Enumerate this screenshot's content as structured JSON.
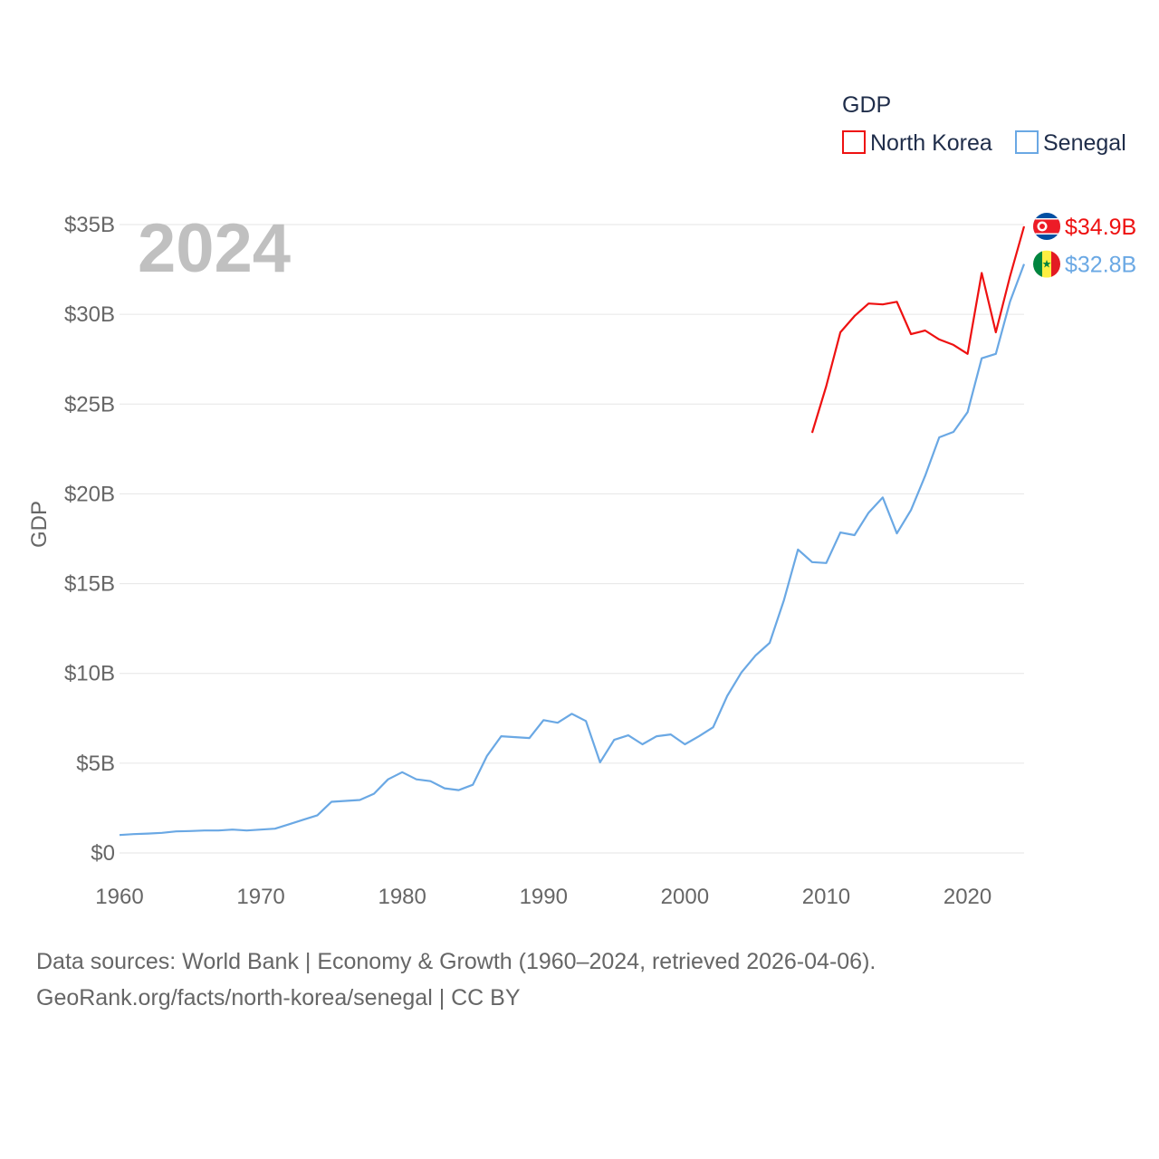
{
  "chart_data": {
    "type": "line",
    "title": "GDP",
    "current_year_label": "2024",
    "ylabel": "GDP",
    "xlabel": "",
    "xlim": [
      1960,
      2024
    ],
    "ylim": [
      0,
      35
    ],
    "y_ticks": [
      {
        "value": 0,
        "label": "$0"
      },
      {
        "value": 5,
        "label": "$5B"
      },
      {
        "value": 10,
        "label": "$10B"
      },
      {
        "value": 15,
        "label": "$15B"
      },
      {
        "value": 20,
        "label": "$20B"
      },
      {
        "value": 25,
        "label": "$25B"
      },
      {
        "value": 30,
        "label": "$30B"
      },
      {
        "value": 35,
        "label": "$35B"
      }
    ],
    "x_ticks": [
      {
        "value": 1960,
        "label": "1960"
      },
      {
        "value": 1970,
        "label": "1970"
      },
      {
        "value": 1980,
        "label": "1980"
      },
      {
        "value": 1990,
        "label": "1990"
      },
      {
        "value": 2000,
        "label": "2000"
      },
      {
        "value": 2010,
        "label": "2010"
      },
      {
        "value": 2020,
        "label": "2020"
      }
    ],
    "legend": {
      "title": "GDP",
      "position": "top-right"
    },
    "series": [
      {
        "name": "North Korea",
        "color": "#ee1111",
        "end_label": "$34.9B",
        "flag": "north-korea-flag-icon",
        "x": [
          2009,
          2010,
          2011,
          2012,
          2013,
          2014,
          2015,
          2016,
          2017,
          2018,
          2019,
          2020,
          2021,
          2022,
          2023,
          2024
        ],
        "values": [
          23.4,
          26.0,
          29.0,
          29.9,
          30.6,
          30.55,
          30.7,
          28.9,
          29.1,
          28.6,
          28.3,
          27.8,
          32.3,
          29.0,
          32.1,
          34.9
        ]
      },
      {
        "name": "Senegal",
        "color": "#6aa8e4",
        "end_label": "$32.8B",
        "flag": "senegal-flag-icon",
        "x": [
          1960,
          1961,
          1962,
          1963,
          1964,
          1965,
          1966,
          1967,
          1968,
          1969,
          1970,
          1971,
          1972,
          1973,
          1974,
          1975,
          1976,
          1977,
          1978,
          1979,
          1980,
          1981,
          1982,
          1983,
          1984,
          1985,
          1986,
          1987,
          1988,
          1989,
          1990,
          1991,
          1992,
          1993,
          1994,
          1995,
          1996,
          1997,
          1998,
          1999,
          2000,
          2001,
          2002,
          2003,
          2004,
          2005,
          2006,
          2007,
          2008,
          2009,
          2010,
          2011,
          2012,
          2013,
          2014,
          2015,
          2016,
          2017,
          2018,
          2019,
          2020,
          2021,
          2022,
          2023,
          2024
        ],
        "values": [
          1.0,
          1.05,
          1.08,
          1.12,
          1.2,
          1.22,
          1.25,
          1.25,
          1.3,
          1.25,
          1.3,
          1.35,
          1.6,
          1.85,
          2.1,
          2.85,
          2.9,
          2.95,
          3.3,
          4.1,
          4.5,
          4.1,
          4.0,
          3.6,
          3.5,
          3.8,
          5.4,
          6.5,
          6.45,
          6.4,
          7.4,
          7.25,
          7.75,
          7.35,
          5.05,
          6.3,
          6.55,
          6.05,
          6.5,
          6.6,
          6.05,
          6.5,
          7.0,
          8.75,
          10.05,
          11.0,
          11.7,
          14.05,
          16.9,
          16.2,
          16.15,
          17.85,
          17.7,
          18.95,
          19.8,
          17.8,
          19.1,
          21.0,
          23.15,
          23.45,
          24.55,
          27.55,
          27.8,
          30.7,
          32.8
        ]
      }
    ]
  },
  "footer": {
    "line1": "Data sources: World Bank | Economy & Growth (1960–2024, retrieved 2026-04-06).",
    "line2": "GeoRank.org/facts/north-korea/senegal | CC BY"
  }
}
